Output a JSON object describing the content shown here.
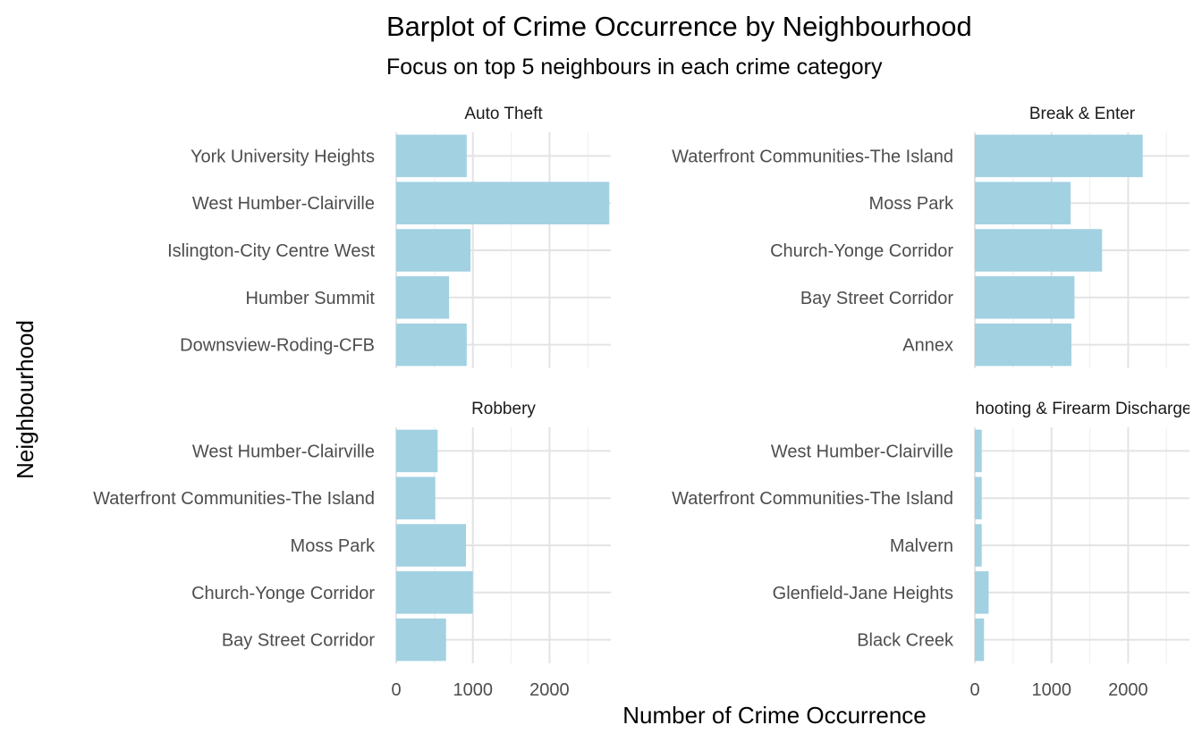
{
  "chart_data": {
    "type": "bar",
    "orientation": "horizontal",
    "title": "Barplot of Crime Occurrence by Neighbourhood",
    "subtitle": "Focus on top 5 neighbours in each crime category",
    "xlabel": "Number of Crime Occurrence",
    "ylabel": "Neighbourhood",
    "xlim": [
      0,
      2800
    ],
    "x_ticks": [
      0,
      1000,
      2000
    ],
    "grid": true,
    "bar_color": "#a2d1e2",
    "panels": [
      {
        "name": "Auto Theft",
        "categories": [
          "York University Heights",
          "West Humber-Clairville",
          "Islington-City Centre West",
          "Humber Summit",
          "Downsview-Roding-CFB"
        ],
        "values": [
          920,
          2780,
          970,
          690,
          920
        ]
      },
      {
        "name": "Break & Enter",
        "categories": [
          "Waterfront Communities-The Island",
          "Moss Park",
          "Church-Yonge Corridor",
          "Bay Street Corridor",
          "Annex"
        ],
        "values": [
          2190,
          1250,
          1660,
          1300,
          1260
        ]
      },
      {
        "name": "Robbery",
        "categories": [
          "West Humber-Clairville",
          "Waterfront Communities-The Island",
          "Moss Park",
          "Church-Yonge Corridor",
          "Bay Street Corridor"
        ],
        "values": [
          540,
          510,
          910,
          1000,
          650
        ]
      },
      {
        "name": "Shooting & Firearm Discharges",
        "categories": [
          "West Humber-Clairville",
          "Waterfront Communities-The Island",
          "Malvern",
          "Glenfield-Jane Heights",
          "Black Creek"
        ],
        "values": [
          90,
          90,
          90,
          180,
          120
        ]
      }
    ]
  }
}
